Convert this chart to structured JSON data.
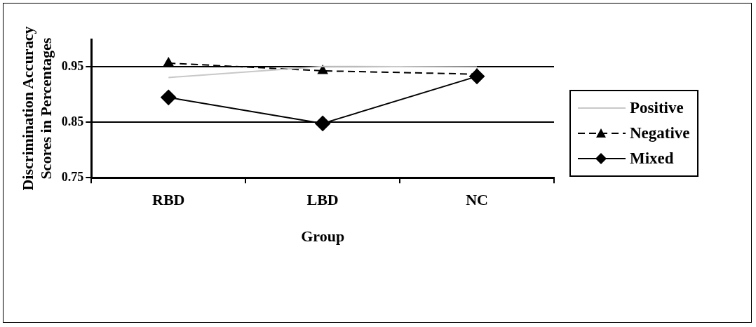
{
  "chart_data": {
    "type": "line",
    "xlabel": "Group",
    "ylabel": "Discrimination Accuracy\nScores in Percentages",
    "categories": [
      "RBD",
      "LBD",
      "NC"
    ],
    "series": [
      {
        "name": "Positive",
        "color": "#c8c8c8",
        "values": [
          0.931,
          0.951,
          0.95
        ],
        "marker": "none",
        "line_style": "solid"
      },
      {
        "name": "Negative",
        "color": "#000000",
        "values": [
          0.957,
          0.943,
          0.937
        ],
        "marker": "triangle",
        "line_style": "dashed"
      },
      {
        "name": "Mixed",
        "color": "#000000",
        "values": [
          0.895,
          0.848,
          0.933
        ],
        "marker": "diamond",
        "line_style": "solid"
      }
    ],
    "ylim": [
      0.75,
      1.0
    ],
    "yticks": [
      0.75,
      0.85,
      0.95
    ],
    "grid": "y",
    "legend": "right"
  }
}
